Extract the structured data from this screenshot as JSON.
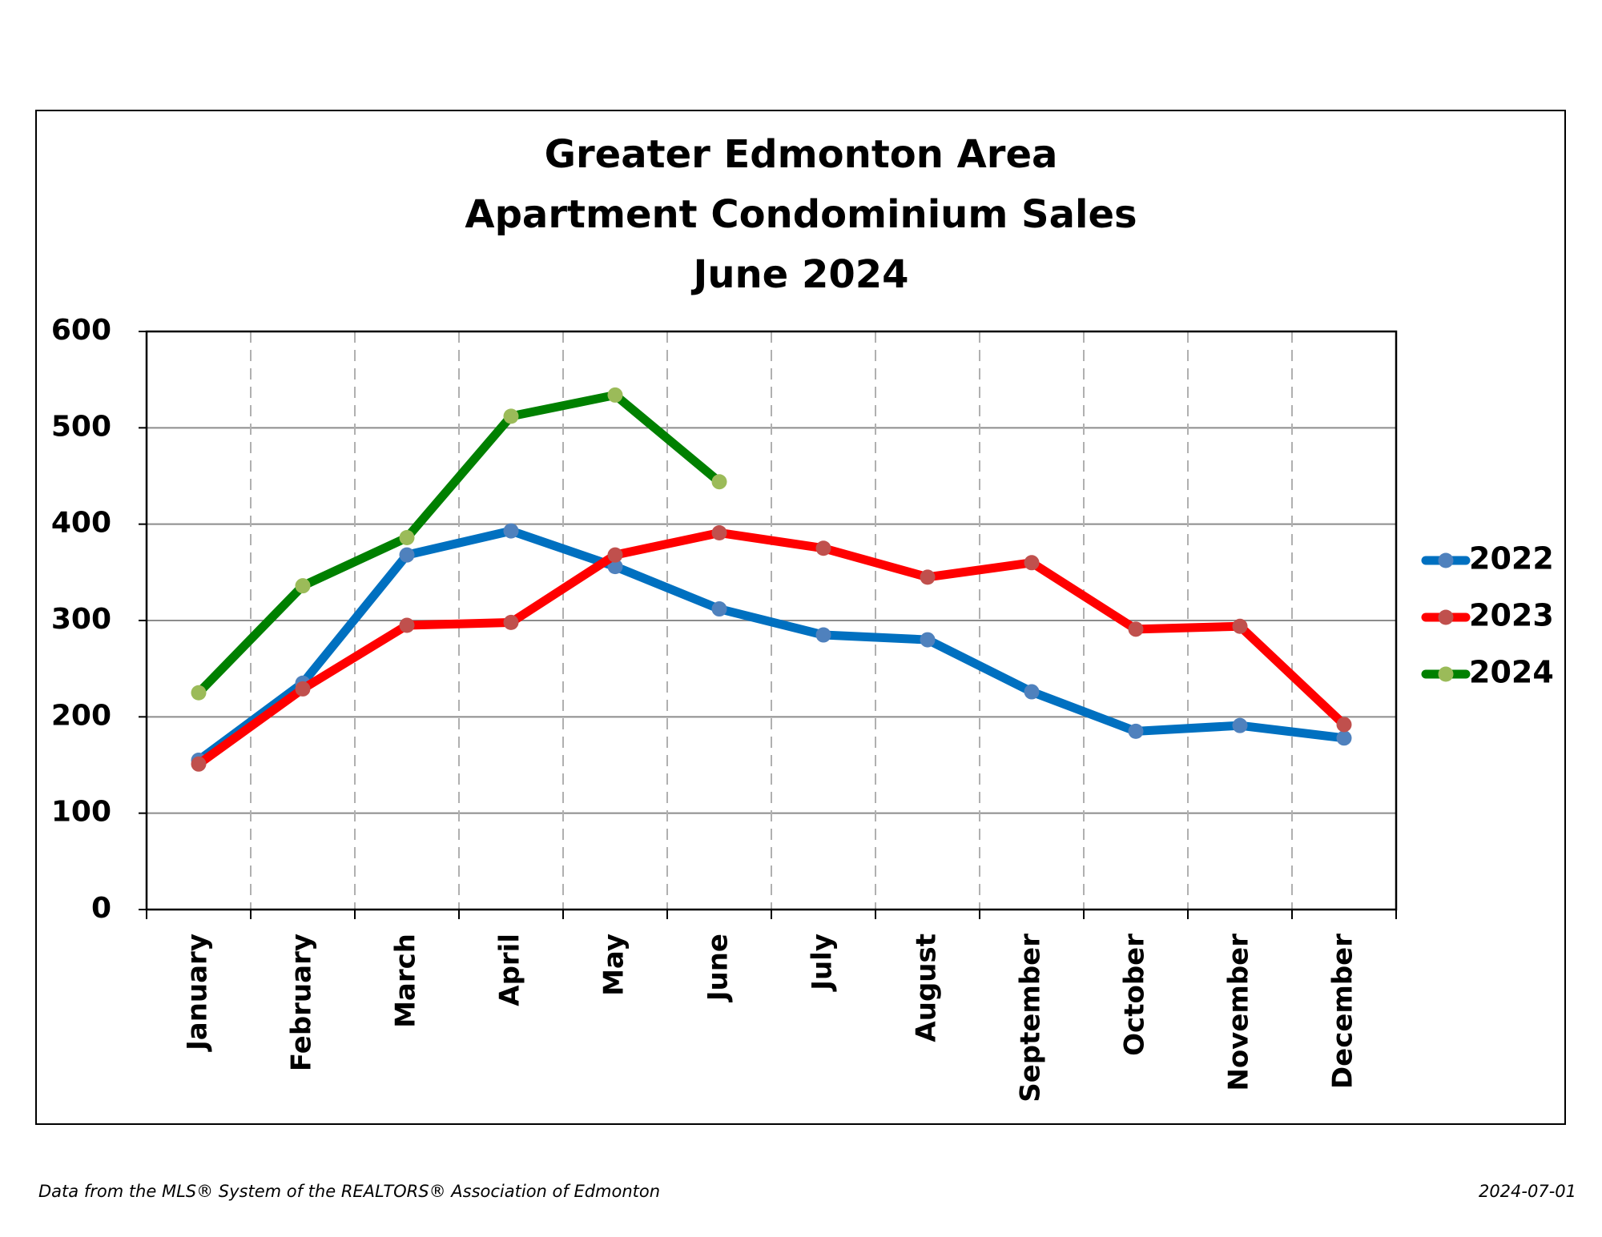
{
  "chart_data": {
    "type": "line",
    "title": [
      "Greater Edmonton Area",
      "Apartment Condominium Sales",
      "June 2024"
    ],
    "categories": [
      "January",
      "February",
      "March",
      "April",
      "May",
      "June",
      "July",
      "August",
      "September",
      "October",
      "November",
      "December"
    ],
    "series": [
      {
        "name": "2022",
        "color": "#0070c0",
        "marker_color": "#4f81bd",
        "values": [
          155,
          235,
          368,
          393,
          356,
          312,
          285,
          280,
          226,
          185,
          191,
          178
        ]
      },
      {
        "name": "2023",
        "color": "#ff0000",
        "marker_color": "#c0504d",
        "values": [
          151,
          229,
          295,
          298,
          368,
          391,
          375,
          345,
          360,
          291,
          294,
          192
        ]
      },
      {
        "name": "2024",
        "color": "#008000",
        "marker_color": "#9bbb59",
        "values": [
          225,
          336,
          386,
          512,
          534,
          444,
          null,
          null,
          null,
          null,
          null,
          null
        ]
      }
    ],
    "ylim": [
      0,
      600
    ],
    "yticks": [
      0,
      100,
      200,
      300,
      400,
      500,
      600
    ],
    "grid": true,
    "legend": "right",
    "footnote": "Data from the MLS® System of the REALTORS® Association of Edmonton",
    "date": "2024-07-01"
  }
}
